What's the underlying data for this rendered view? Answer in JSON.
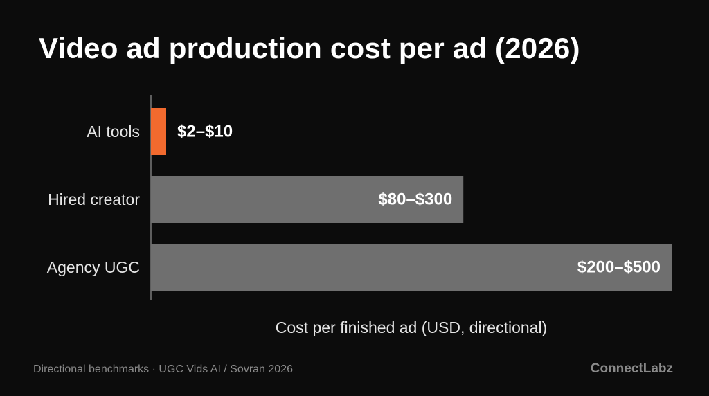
{
  "chart_data": {
    "type": "bar",
    "orientation": "horizontal",
    "title": "Video ad production cost per ad (2026)",
    "xlabel": "Cost per finished ad (USD, directional)",
    "ylabel": "",
    "categories": [
      "AI tools",
      "Hired creator",
      "Agency UGC"
    ],
    "ranges": [
      [
        2,
        10
      ],
      [
        80,
        300
      ],
      [
        200,
        500
      ]
    ],
    "values": [
      10,
      300,
      500
    ],
    "data_labels": [
      "$2–$10",
      "$80–$300",
      "$200–$500"
    ],
    "xlim": [
      0,
      500
    ],
    "grid": false,
    "legend": "none",
    "colors": [
      "#f26a2e",
      "#6f6f6f",
      "#6f6f6f"
    ]
  },
  "footer": {
    "source": "Directional benchmarks · UGC Vids AI / Sovran 2026",
    "brand": "ConnectLabz"
  }
}
